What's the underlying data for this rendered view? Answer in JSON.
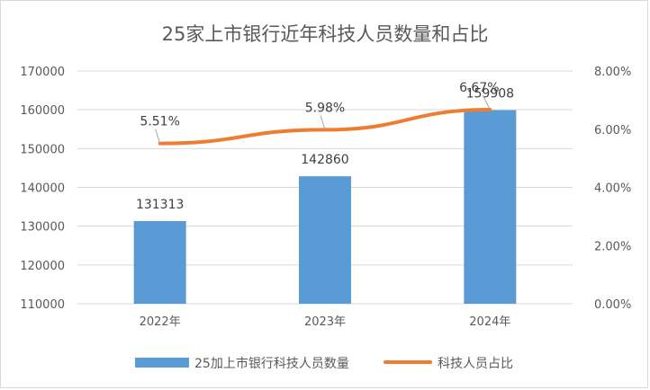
{
  "chart_data": {
    "type": "bar+line",
    "title": "25家上市银行近年科技人员数量和占比",
    "categories": [
      "2022年",
      "2023年",
      "2024年"
    ],
    "series": [
      {
        "name": "25加上市银行科技人员数量",
        "type": "bar",
        "axis": "left",
        "values": [
          131313,
          142860,
          159908
        ],
        "labels": [
          "131313",
          "142860",
          "159908"
        ],
        "color": "#5b9bd5"
      },
      {
        "name": "科技人员占比",
        "type": "line",
        "axis": "right",
        "values": [
          5.51,
          5.98,
          6.67
        ],
        "labels": [
          "5.51%",
          "5.98%",
          "6.67%"
        ],
        "color": "#ed7d31"
      }
    ],
    "y_left": {
      "min": 110000,
      "max": 170000,
      "ticks": [
        "110000",
        "120000",
        "130000",
        "140000",
        "150000",
        "160000",
        "170000"
      ]
    },
    "y_right": {
      "min": 0,
      "max": 8,
      "ticks": [
        "0.00%",
        "2.00%",
        "4.00%",
        "6.00%",
        "8.00%"
      ]
    },
    "grid": true,
    "legend": "bottom"
  }
}
